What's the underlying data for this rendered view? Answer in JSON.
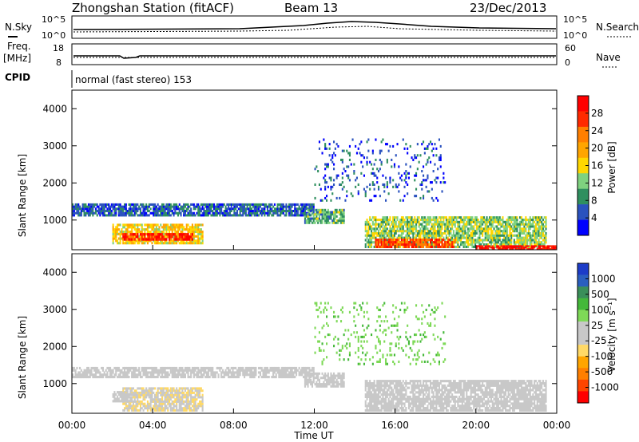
{
  "header": {
    "station": "Zhongshan Station (fitACF)",
    "beam": "Beam 13",
    "date": "23/Dec/2013",
    "cpid": "CPID",
    "program": "normal (fast stereo) 153"
  },
  "summary": {
    "nsky_label": "N.Sky",
    "nsearch_label": "N.Search",
    "noise_ticks": [
      "10^5",
      "10^0"
    ],
    "freq_label": "Freq.",
    "freq_unit": "[MHz]",
    "freq_ticks": [
      "18",
      "8"
    ],
    "nave_label": "Nave",
    "nave_ticks": [
      "60",
      "0"
    ]
  },
  "panels": {
    "power": {
      "ylabel": "Slant Range [km]",
      "cbar_label": "Power [dB]",
      "cbar_ticks": [
        "28",
        "24",
        "20",
        "16",
        "12",
        "8",
        "4"
      ],
      "cbar_colors": [
        "#ff0000",
        "#ff2a00",
        "#ff7f00",
        "#ffa500",
        "#ffd700",
        "#7fd27f",
        "#2f8f5f",
        "#2a52be",
        "#0000ff"
      ]
    },
    "velocity": {
      "ylabel": "Slant Range [km]",
      "cbar_label": "Velocity [m s⁻¹]",
      "cbar_ticks": [
        "1000",
        "500",
        "100",
        "25",
        "-25",
        "-100",
        "-500",
        "-1000"
      ],
      "cbar_colors": [
        "#1c3cc8",
        "#2a5fbf",
        "#3a8f5a",
        "#44b83a",
        "#7ed957",
        "#c8c8c8",
        "#c8c8c8",
        "#ffd966",
        "#ffa500",
        "#ff7f00",
        "#ff4500",
        "#ff0000"
      ]
    },
    "range_ticks": [
      "4000",
      "3000",
      "2000",
      "1000"
    ]
  },
  "xaxis": {
    "label": "Time UT",
    "ticks": [
      "00:00",
      "04:00",
      "08:00",
      "12:00",
      "16:00",
      "20:00",
      "00:00"
    ]
  },
  "chart_data": {
    "type": "heatmap",
    "title": "Zhongshan Station (fitACF)",
    "x_units": "hours UT",
    "xlim": [
      0,
      24
    ],
    "ylim": [
      200,
      4500
    ],
    "power": {
      "clim": [
        0,
        30
      ],
      "regions": [
        {
          "t0": 0,
          "t1": 12,
          "r0": 1100,
          "r1": 1450,
          "value": 6
        },
        {
          "t0": 2.0,
          "t1": 6.5,
          "r0": 350,
          "r1": 900,
          "value": 16
        },
        {
          "t0": 2.5,
          "t1": 6.0,
          "r0": 450,
          "r1": 650,
          "value": 26
        },
        {
          "t0": 11.5,
          "t1": 13.5,
          "r0": 900,
          "r1": 1300,
          "value": 10
        },
        {
          "t0": 12.0,
          "t1": 18.5,
          "r0": 1500,
          "r1": 3200,
          "value": 5
        },
        {
          "t0": 14.5,
          "t1": 23.5,
          "r0": 250,
          "r1": 1100,
          "value": 12
        },
        {
          "t0": 15.0,
          "t1": 19.0,
          "r0": 250,
          "r1": 500,
          "value": 24
        },
        {
          "t0": 20.0,
          "t1": 24.0,
          "r0": 200,
          "r1": 320,
          "value": 28
        }
      ]
    },
    "velocity": {
      "clim": [
        -1000,
        1000
      ],
      "regions": [
        {
          "t0": 0,
          "t1": 12,
          "r0": 1150,
          "r1": 1450,
          "value": 0
        },
        {
          "t0": 2.5,
          "t1": 6.5,
          "r0": 250,
          "r1": 900,
          "value": -150
        },
        {
          "t0": 2.0,
          "t1": 3.0,
          "r0": 500,
          "r1": 800,
          "value": 80
        },
        {
          "t0": 11.5,
          "t1": 13.5,
          "r0": 900,
          "r1": 1300,
          "value": 0
        },
        {
          "t0": 12.0,
          "t1": 18.5,
          "r0": 1500,
          "r1": 3200,
          "value": 300
        },
        {
          "t0": 14.5,
          "t1": 23.5,
          "r0": 250,
          "r1": 1100,
          "value": 70
        }
      ]
    }
  }
}
